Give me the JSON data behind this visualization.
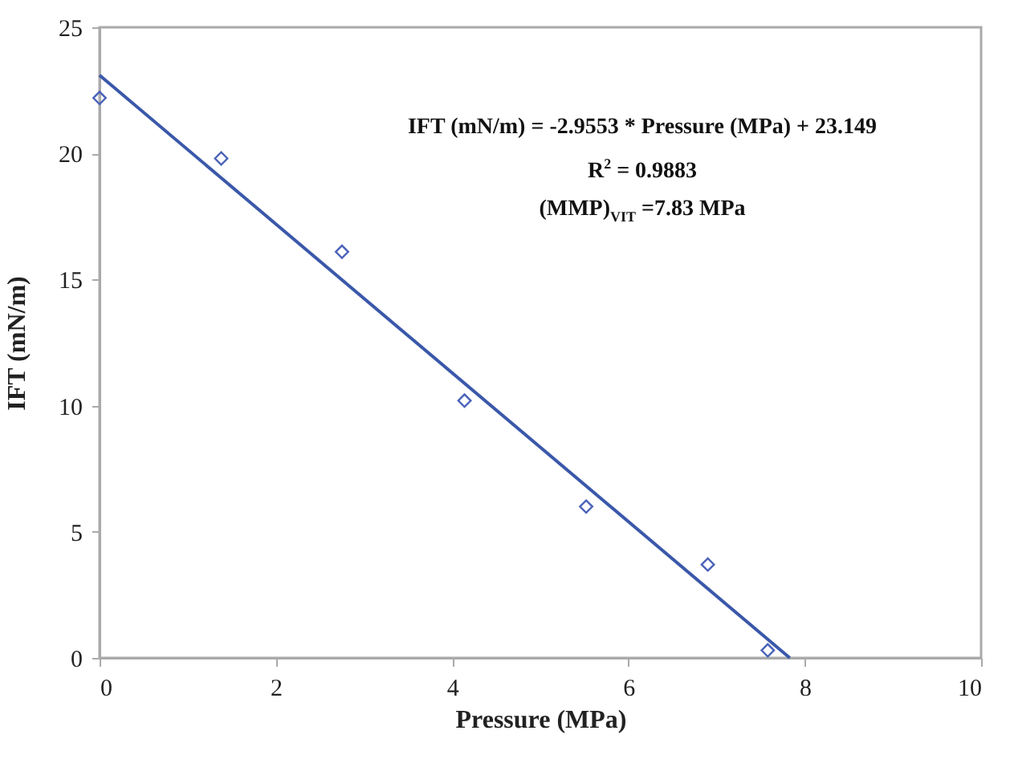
{
  "chart_data": {
    "type": "scatter",
    "xlabel": "Pressure (MPa)",
    "ylabel": "IFT (mN/m)",
    "xlim": [
      0,
      10
    ],
    "xticks": [
      0,
      2,
      4,
      6,
      8,
      10
    ],
    "ylim": [
      0,
      25
    ],
    "yticks": [
      0,
      5,
      10,
      15,
      20,
      25
    ],
    "grid": false,
    "annotations": [
      "IFT (mN/m) = -2.9553 * Pressure (MPa) + 23.149",
      "R$^{2}$ = 0.9883",
      "(MMP)$_{VIT}$ =7.83 MPa"
    ],
    "series": [
      {
        "color": "#4a62b8",
        "marker": "diamond",
        "x": [
          0,
          1.38,
          2.75,
          4.14,
          5.52,
          6.9,
          7.58
        ],
        "values": [
          22.2,
          19.8,
          16.1,
          10.2,
          6.0,
          3.7,
          0.3
        ]
      },
      {
        "type": "line",
        "color": "#3a58aa",
        "x": [
          0,
          7.83
        ],
        "values": [
          23.1,
          0
        ],
        "line_style": "solid",
        "marker": "none"
      }
    ]
  }
}
